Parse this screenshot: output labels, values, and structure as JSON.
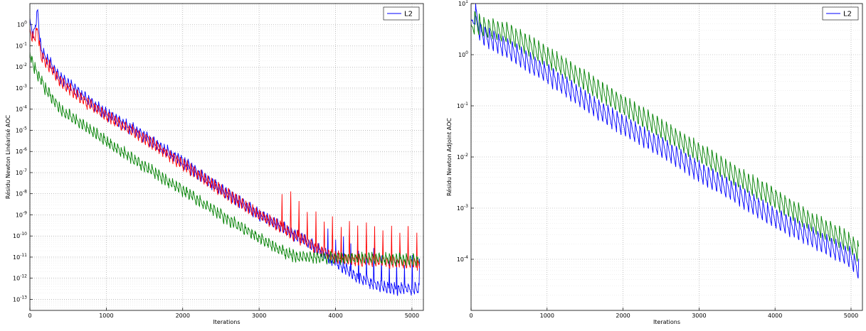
{
  "chart_data": [
    {
      "type": "line",
      "title": "",
      "xlabel": "Iterations",
      "ylabel": "Résidu Newton Linéarisé AOC",
      "xlim": [
        0,
        5150
      ],
      "ylim": [
        3e-14,
        10
      ],
      "yscale": "log",
      "grid": true,
      "legend": {
        "entries": [
          "L2"
        ],
        "placement": "top-right"
      },
      "x_ticks": [
        0,
        1000,
        2000,
        3000,
        4000,
        5000
      ],
      "y_ticks": [
        1e-13,
        1e-12,
        1e-11,
        1e-10,
        1e-09,
        1e-08,
        1e-07,
        1e-06,
        1e-05,
        0.0001,
        0.001,
        0.01,
        0.1,
        1
      ],
      "y_tick_labels": [
        {
          "base": "10",
          "exp": "-13"
        },
        {
          "base": "10",
          "exp": "-12"
        },
        {
          "base": "10",
          "exp": "-11"
        },
        {
          "base": "10",
          "exp": "-10"
        },
        {
          "base": "10",
          "exp": "-9"
        },
        {
          "base": "10",
          "exp": "-8"
        },
        {
          "base": "10",
          "exp": "-7"
        },
        {
          "base": "10",
          "exp": "-6"
        },
        {
          "base": "10",
          "exp": "-5"
        },
        {
          "base": "10",
          "exp": "-4"
        },
        {
          "base": "10",
          "exp": "-3"
        },
        {
          "base": "10",
          "exp": "-2"
        },
        {
          "base": "10",
          "exp": "-1"
        },
        {
          "base": "10",
          "exp": "0"
        }
      ],
      "series": [
        {
          "name": "L2",
          "color": "#0000ff",
          "x": [
            0,
            50,
            100,
            150,
            200,
            400,
            600,
            800,
            1000,
            1500,
            2000,
            2500,
            3000,
            3400,
            3800,
            4000,
            4300,
            4600,
            4800,
            5000,
            5100
          ],
          "y": [
            1.0,
            0.3,
            4.0,
            0.05,
            0.03,
            0.003,
            0.0008,
            0.0002,
            6e-05,
            5e-06,
            3e-07,
            1.5e-08,
            1e-09,
            1.5e-10,
            2e-11,
            5e-12,
            1e-12,
            4e-13,
            3e-13,
            3e-13,
            3e-13
          ],
          "spike": {
            "from": 3900,
            "period": 100,
            "factor": 25
          }
        },
        {
          "name": "",
          "color": "#ff0000",
          "x": [
            0,
            50,
            100,
            150,
            200,
            400,
            600,
            800,
            1000,
            1500,
            2000,
            2500,
            3000,
            3400,
            3800,
            4000,
            4300,
            4600,
            5000,
            5100
          ],
          "y": [
            0.5,
            0.2,
            0.6,
            0.03,
            0.02,
            0.002,
            0.0005,
            0.00015,
            5e-05,
            4e-06,
            2.5e-07,
            1.5e-08,
            1e-09,
            1.5e-10,
            2e-11,
            1e-11,
            7e-12,
            6e-12,
            5e-12,
            4e-12
          ],
          "spike": {
            "from": 3300,
            "period": 110,
            "factor": 50
          }
        },
        {
          "name": "",
          "color": "#008000",
          "x": [
            0,
            50,
            100,
            200,
            400,
            600,
            800,
            1000,
            1500,
            2000,
            2500,
            3000,
            3300,
            3500,
            3800,
            4000,
            4400,
            4800,
            5100
          ],
          "y": [
            0.05,
            0.01,
            0.005,
            0.001,
            0.0001,
            3e-05,
            1e-05,
            3e-06,
            2e-07,
            1.5e-08,
            1e-09,
            8e-11,
            2e-11,
            1e-11,
            1e-11,
            9e-12,
            9e-12,
            8e-12,
            7e-12
          ]
        }
      ]
    },
    {
      "type": "line",
      "title": "",
      "xlabel": "Iterations",
      "ylabel": "Résidu Newton Adjoint AOC",
      "xlim": [
        0,
        5150
      ],
      "ylim": [
        1e-05,
        10
      ],
      "yscale": "log",
      "grid": true,
      "legend": {
        "entries": [
          "L2"
        ],
        "placement": "top-right"
      },
      "x_ticks": [
        0,
        1000,
        2000,
        3000,
        4000,
        5000
      ],
      "y_ticks": [
        0.0001,
        0.001,
        0.01,
        0.1,
        1,
        10
      ],
      "y_tick_labels": [
        {
          "base": "10",
          "exp": "-4"
        },
        {
          "base": "10",
          "exp": "-3"
        },
        {
          "base": "10",
          "exp": "-2"
        },
        {
          "base": "10",
          "exp": "-1"
        },
        {
          "base": "10",
          "exp": "0"
        },
        {
          "base": "10",
          "exp": "1"
        }
      ],
      "series": [
        {
          "name": "L2",
          "color": "#0000ff",
          "x": [
            0,
            60,
            120,
            500,
            1000,
            1500,
            2000,
            2500,
            3000,
            3500,
            4000,
            4500,
            5000,
            5100
          ],
          "y": [
            3.0,
            6.0,
            2.5,
            1.2,
            0.4,
            0.12,
            0.04,
            0.015,
            0.005,
            0.0018,
            0.0006,
            0.00025,
            0.0001,
            6e-05
          ]
        },
        {
          "name": "",
          "color": "#008000",
          "x": [
            0,
            60,
            120,
            500,
            1000,
            1500,
            2000,
            2500,
            3000,
            3500,
            4000,
            4500,
            5000,
            5100
          ],
          "y": [
            3.0,
            4.5,
            3.5,
            2.5,
            0.9,
            0.3,
            0.1,
            0.035,
            0.012,
            0.004,
            0.0015,
            0.0005,
            0.0002,
            0.00013
          ]
        }
      ]
    }
  ]
}
